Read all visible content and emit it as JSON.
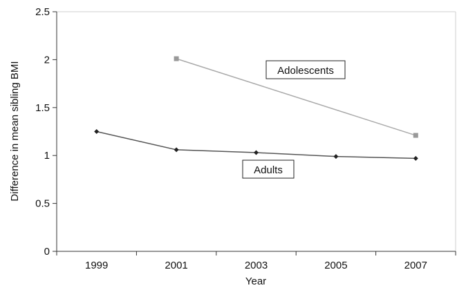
{
  "chart_data": {
    "type": "line",
    "xlabel": "Year",
    "ylabel": "Difference in mean sibling BMI",
    "x_categories": [
      "1999",
      "2001",
      "2003",
      "2005",
      "2007"
    ],
    "y_ticks": [
      "0",
      "0.5",
      "1",
      "1.5",
      "2",
      "2.5"
    ],
    "ylim": [
      0,
      2.5
    ],
    "grid": false,
    "legend": "none",
    "series": [
      {
        "name": "Adults",
        "color": "#555555",
        "marker": "diamond",
        "points": [
          {
            "x": "1999",
            "y": 1.25
          },
          {
            "x": "2001",
            "y": 1.06
          },
          {
            "x": "2003",
            "y": 1.03
          },
          {
            "x": "2005",
            "y": 0.99
          },
          {
            "x": "2007",
            "y": 0.97
          }
        ]
      },
      {
        "name": "Adolescents",
        "color": "#aaaaaa",
        "marker": "square",
        "points": [
          {
            "x": "2001",
            "y": 2.01
          },
          {
            "x": "2007",
            "y": 1.21
          }
        ]
      }
    ]
  }
}
